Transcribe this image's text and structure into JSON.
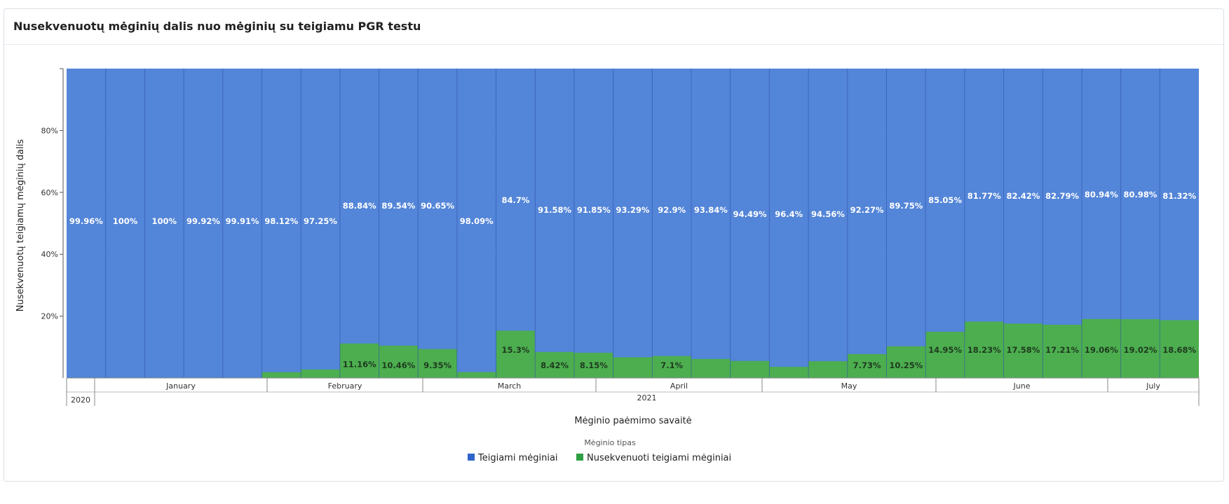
{
  "title": "Nusekvenuotų mėginių dalis nuo mėginių su teigiamu PGR testu",
  "colors": {
    "positive": "#5385d8",
    "sequenced": "#4cae4f",
    "divider": "#2b4fa8",
    "grid": "#6d8fc9"
  },
  "chart_data": {
    "type": "bar",
    "stacked": true,
    "normalized": true,
    "title": "Nusekvenuotų mėginių dalis nuo mėginių su teigiamu PGR testu",
    "xlabel": "Mėginio paėmimo savaitė",
    "ylabel": "Nusekvenuotų teigiamų mėginių dalis",
    "ylim": [
      0,
      100
    ],
    "yticks": [
      "20%",
      "40%",
      "60%",
      "80%"
    ],
    "month_labels": [
      "January",
      "February",
      "March",
      "April",
      "May",
      "June",
      "July"
    ],
    "year_labels": [
      "2020",
      "2021"
    ],
    "legend_title": "Mėginio tipas",
    "legend_position": "bottom-center",
    "series": [
      {
        "name": "Teigiami mėginiai",
        "color": "#5385d8",
        "values": [
          99.96,
          100,
          100,
          99.92,
          99.91,
          98.12,
          97.25,
          88.84,
          89.54,
          90.65,
          98.09,
          84.7,
          91.58,
          91.85,
          93.29,
          92.9,
          93.84,
          94.49,
          96.4,
          94.56,
          92.27,
          89.75,
          85.05,
          81.77,
          82.42,
          82.79,
          80.94,
          80.98,
          81.32
        ],
        "labels": [
          "99.96%",
          "100%",
          "100%",
          "99.92%",
          "99.91%",
          "98.12%",
          "97.25%",
          "88.84%",
          "89.54%",
          "90.65%",
          "98.09%",
          "84.7%",
          "91.58%",
          "91.85%",
          "93.29%",
          "92.9%",
          "93.84%",
          "94.49%",
          "96.4%",
          "94.56%",
          "92.27%",
          "89.75%",
          "85.05%",
          "81.77%",
          "82.42%",
          "82.79%",
          "80.94%",
          "80.98%",
          "81.32%"
        ]
      },
      {
        "name": "Nusekvenuoti teigiami mėginiai",
        "color": "#4cae4f",
        "values": [
          0.04,
          0,
          0,
          0.08,
          0.09,
          1.88,
          2.75,
          11.16,
          10.46,
          9.35,
          1.91,
          15.3,
          8.42,
          8.15,
          6.71,
          7.1,
          6.16,
          5.51,
          3.6,
          5.44,
          7.73,
          10.25,
          14.95,
          18.23,
          17.58,
          17.21,
          19.06,
          19.02,
          18.68
        ],
        "labels": [
          "",
          "",
          "",
          "",
          "",
          "",
          "",
          "11.16%",
          "10.46%",
          "9.35%",
          "",
          "15.3%",
          "8.42%",
          "8.15%",
          "",
          "7.1%",
          "",
          "",
          "",
          "",
          "7.73%",
          "10.25%",
          "14.95%",
          "18.23%",
          "17.58%",
          "17.21%",
          "19.06%",
          "19.02%",
          "18.68%"
        ]
      }
    ]
  }
}
